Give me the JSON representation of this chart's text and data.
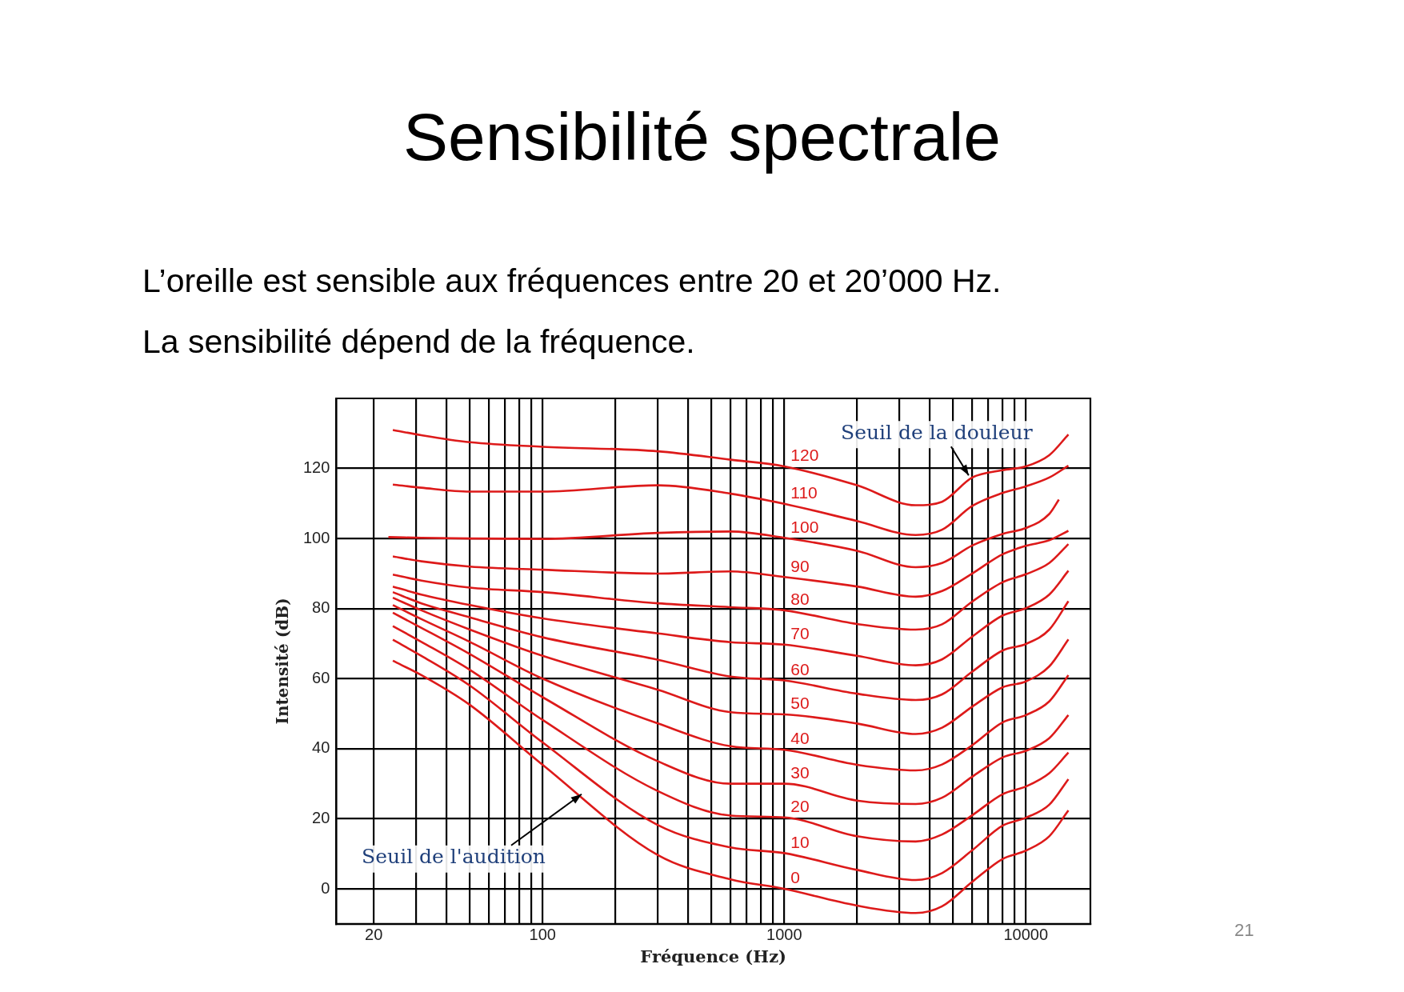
{
  "chart_data": {
    "type": "line",
    "title": "Sensibilité spectrale",
    "subtitle": "L’oreille est sensible aux fréquences entre 20 et 20’000 Hz.\nLa sensibilité dépend de la fréquence.",
    "xlabel": "Fréquence (Hz)",
    "ylabel": "Intensité (dB)",
    "log": "x",
    "grid": true,
    "marker": "none",
    "line_style": "solid",
    "legend": false,
    "xlim": [
      14,
      18500
    ],
    "ylim": [
      -10,
      140
    ],
    "xticks": [
      20,
      {
        "value": 30,
        "label": null
      },
      {
        "value": 40,
        "label": null
      },
      {
        "value": 50,
        "label": null
      },
      {
        "value": 60,
        "label": null
      },
      {
        "value": 70,
        "label": null
      },
      {
        "value": 80,
        "label": null
      },
      {
        "value": 90,
        "label": null
      },
      100,
      {
        "value": 200,
        "label": null
      },
      {
        "value": 300,
        "label": null
      },
      {
        "value": 400,
        "label": null
      },
      {
        "value": 500,
        "label": null
      },
      {
        "value": 600,
        "label": null
      },
      {
        "value": 700,
        "label": null
      },
      {
        "value": 800,
        "label": null
      },
      {
        "value": 900,
        "label": null
      },
      1000,
      {
        "value": 2000,
        "label": null
      },
      {
        "value": 3000,
        "label": null
      },
      {
        "value": 4000,
        "label": null
      },
      {
        "value": 5000,
        "label": null
      },
      {
        "value": 6000,
        "label": null
      },
      {
        "value": 7000,
        "label": null
      },
      {
        "value": 8000,
        "label": null
      },
      {
        "value": 9000,
        "label": null
      },
      10000
    ],
    "yticks": [
      0,
      20,
      40,
      60,
      80,
      100,
      120
    ],
    "x": [
      24,
      31.5,
      50,
      100,
      300,
      600,
      1000,
      2000,
      3500,
      4500,
      6000,
      8000,
      10000,
      12500,
      15000
    ],
    "series": [
      {
        "name": "120",
        "color": "#dd1a1a",
        "values": [
          131,
          129.5,
          127.5,
          126.2,
          124.9,
          122.5,
          120.6,
          115.2,
          109.5,
          110.5,
          117.4,
          119.5,
          120.6,
          123.8,
          129.7
        ]
      },
      {
        "name": "110",
        "color": "#dd1a1a",
        "values": [
          115.4,
          114.5,
          113.4,
          113.4,
          115.2,
          112.8,
          109.9,
          105,
          101,
          102.5,
          109.3,
          113,
          114.9,
          117.4,
          120.8
        ]
      },
      {
        "name": "100",
        "color": "#dd1a1a",
        "x": [
          23,
          31.5,
          50,
          100,
          300,
          600,
          1000,
          2000,
          3500,
          4500,
          6000,
          8000,
          10000,
          12500,
          13700
        ],
        "values": [
          100.4,
          100.2,
          100,
          99.9,
          101.6,
          102,
          100.2,
          96.5,
          91.8,
          93,
          98,
          101.3,
          103,
          107,
          111.1
        ]
      },
      {
        "name": "90",
        "color": "#dd1a1a",
        "values": [
          94.9,
          93.5,
          92,
          91.1,
          90,
          90.6,
          89,
          86.3,
          83.4,
          85,
          90,
          95.5,
          97.9,
          99.5,
          102.2
        ]
      },
      {
        "name": "80",
        "color": "#dd1a1a",
        "values": [
          89.7,
          88,
          86,
          84.7,
          81.5,
          80.4,
          79.5,
          75.6,
          74,
          75.5,
          82,
          87.5,
          89.8,
          93,
          98.4
        ]
      },
      {
        "name": "70",
        "color": "#dd1a1a",
        "values": [
          86.3,
          84,
          81,
          77.2,
          72.9,
          70.4,
          69.7,
          66.5,
          63.8,
          65.5,
          72,
          78,
          80.1,
          84,
          90.8
        ]
      },
      {
        "name": "60",
        "color": "#dd1a1a",
        "values": [
          84.7,
          81.5,
          77.5,
          71.8,
          65.4,
          60.6,
          59.5,
          55.7,
          53.9,
          55.5,
          62,
          68,
          69.9,
          74,
          82.1
        ]
      },
      {
        "name": "50",
        "color": "#dd1a1a",
        "values": [
          83.1,
          79.5,
          74,
          66.5,
          56.8,
          50.4,
          49.8,
          47.2,
          44.2,
          46,
          52,
          57.5,
          59.2,
          63.5,
          71.2
        ]
      },
      {
        "name": "40",
        "color": "#dd1a1a",
        "values": [
          81,
          77,
          70.5,
          60,
          47.2,
          40.7,
          39.7,
          35.4,
          33.8,
          35.5,
          41,
          47.5,
          49.6,
          53.5,
          61
        ]
      },
      {
        "name": "30",
        "color": "#dd1a1a",
        "values": [
          78.8,
          74.5,
          67,
          54.7,
          36.4,
          30,
          30,
          25.2,
          24.2,
          26,
          32,
          37.5,
          39.4,
          43,
          49.6
        ]
      },
      {
        "name": "20",
        "color": "#dd1a1a",
        "values": [
          75,
          70.5,
          62.5,
          48.2,
          27.9,
          20.9,
          20.4,
          15,
          13.5,
          15.5,
          21,
          27,
          29.2,
          33,
          38.9
        ]
      },
      {
        "name": "10",
        "color": "#dd1a1a",
        "values": [
          71.1,
          66.5,
          58,
          41.8,
          18.2,
          11.8,
          10.2,
          5.4,
          2.5,
          4.5,
          11,
          18,
          20.3,
          24,
          31.3
        ]
      },
      {
        "name": "0",
        "color": "#dd1a1a",
        "values": [
          65.1,
          61,
          52.5,
          35.4,
          9.6,
          2.7,
          0,
          -4.8,
          -6.9,
          -5,
          2,
          8.5,
          10.9,
          15,
          22.4
        ]
      }
    ],
    "annotations": [
      {
        "text": "Seuil de la douleur",
        "x": 5800,
        "y": 118
      },
      {
        "text": "Seuil de l'audition",
        "x": 145,
        "y": 27
      },
      "21"
    ]
  }
}
